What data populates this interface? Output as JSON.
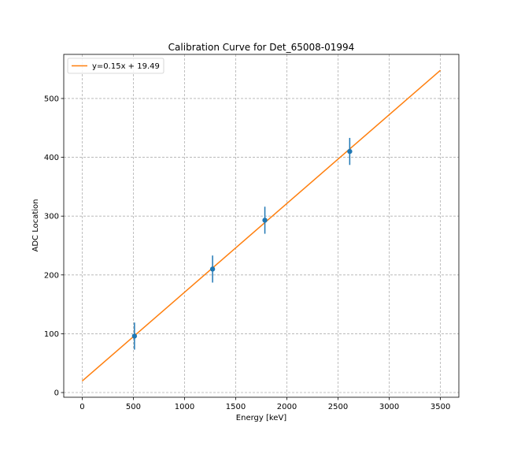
{
  "chart_data": {
    "type": "scatter",
    "title": "Calibration Curve for Det_65008-01994",
    "xlabel": "Energy [keV]",
    "ylabel": "ADC Location",
    "xlim": [
      -180,
      3680
    ],
    "ylim": [
      -8,
      575
    ],
    "xticks": [
      0,
      500,
      1000,
      1500,
      2000,
      2500,
      3000,
      3500
    ],
    "yticks": [
      0,
      100,
      200,
      300,
      400,
      500
    ],
    "grid": true,
    "legend_position": "top-left",
    "series": [
      {
        "type": "errorbar",
        "color": "#1f77b4",
        "points": [
          {
            "x": 511,
            "y": 96,
            "err": 23
          },
          {
            "x": 1274,
            "y": 210,
            "err": 23
          },
          {
            "x": 1785,
            "y": 293,
            "err": 23
          },
          {
            "x": 2614,
            "y": 410,
            "err": 23
          }
        ]
      },
      {
        "type": "line",
        "name": "y=0.15x + 19.49",
        "color": "#ff7f0e",
        "slope": 0.151,
        "intercept": 19.49,
        "x_range": [
          0,
          3500
        ]
      }
    ]
  }
}
